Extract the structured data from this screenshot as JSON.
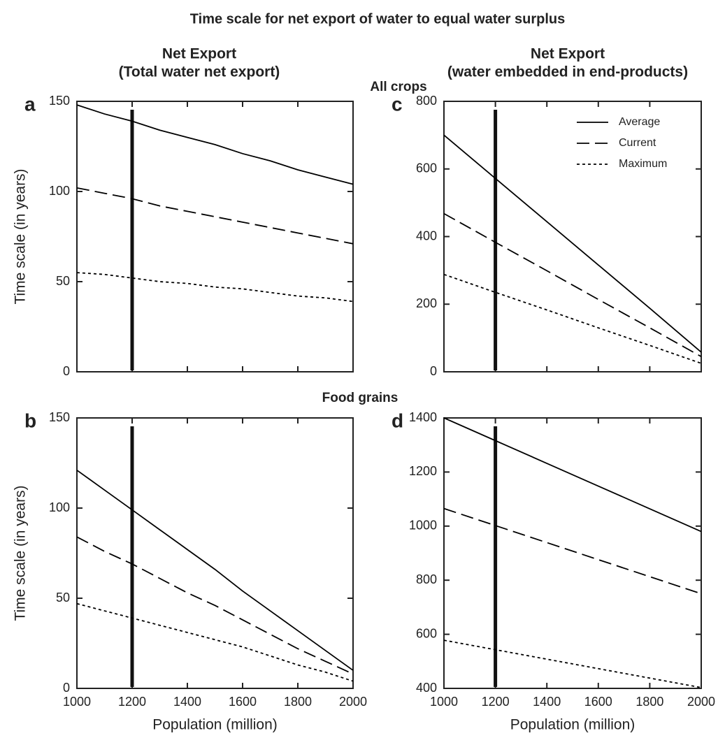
{
  "title": "Time scale for net export of water to equal water surplus",
  "column_titles": [
    [
      "Net Export",
      "(Total water net export)"
    ],
    [
      "Net Export",
      "(water embedded in end-products)"
    ]
  ],
  "row_titles": [
    "All crops",
    "Food grains"
  ],
  "chart_data": [
    {
      "type": "line",
      "label": "a",
      "ylabel": "Time scale (in years)",
      "show_xtick_labels": false,
      "xlim": [
        1000,
        2000
      ],
      "xticks": [
        1000,
        1200,
        1400,
        1600,
        1800,
        2000
      ],
      "ylim": [
        0,
        150
      ],
      "yticks": [
        0,
        50,
        100,
        150
      ],
      "vline": 1200,
      "x": [
        1000,
        1100,
        1200,
        1300,
        1400,
        1500,
        1600,
        1700,
        1800,
        1900,
        2000
      ],
      "series": [
        {
          "color": "#000000",
          "style": "solid",
          "values": [
            148,
            143,
            139,
            134,
            130,
            126,
            121,
            117,
            112,
            108,
            104
          ]
        },
        {
          "color": "#000000",
          "style": "dashed",
          "values": [
            102,
            99,
            96,
            92,
            89,
            86,
            83,
            80,
            77,
            74,
            71
          ]
        },
        {
          "color": "#000000",
          "style": "dotted",
          "values": [
            55,
            54,
            52,
            50,
            49,
            47,
            46,
            44,
            42,
            41,
            39
          ]
        }
      ]
    },
    {
      "type": "line",
      "label": "b",
      "ylabel": "Time scale (in years)",
      "xlabel": "Population (million)",
      "show_xtick_labels": true,
      "xlim": [
        1000,
        2000
      ],
      "xticks": [
        1000,
        1200,
        1400,
        1600,
        1800,
        2000
      ],
      "ylim": [
        0,
        150
      ],
      "yticks": [
        0,
        50,
        100,
        150
      ],
      "vline": 1200,
      "x": [
        1000,
        1100,
        1200,
        1300,
        1400,
        1500,
        1600,
        1700,
        1800,
        1900,
        2000
      ],
      "series": [
        {
          "color": "#000000",
          "style": "solid",
          "values": [
            121,
            110,
            99,
            88,
            77,
            66,
            54,
            43,
            32,
            21,
            10
          ]
        },
        {
          "color": "#000000",
          "style": "dashed",
          "values": [
            84,
            76,
            69,
            61,
            53,
            46,
            38,
            30,
            22,
            15,
            8
          ]
        },
        {
          "color": "#000000",
          "style": "dotted",
          "values": [
            47,
            43,
            39,
            35,
            31,
            27,
            23,
            18,
            13,
            9,
            4
          ]
        }
      ]
    },
    {
      "type": "line",
      "label": "c",
      "show_xtick_labels": false,
      "legend": "top-right",
      "xlim": [
        1000,
        2000
      ],
      "xticks": [
        1000,
        1200,
        1400,
        1600,
        1800,
        2000
      ],
      "ylim": [
        0,
        800
      ],
      "yticks": [
        0,
        200,
        400,
        600,
        800
      ],
      "vline": 1200,
      "x": [
        1000,
        1200,
        1400,
        1600,
        1800,
        2000
      ],
      "series": [
        {
          "name": "Average",
          "color": "#000000",
          "style": "solid",
          "values": [
            700,
            572,
            444,
            316,
            188,
            58
          ]
        },
        {
          "name": "Current",
          "color": "#000000",
          "style": "dashed",
          "values": [
            468,
            383,
            299,
            214,
            130,
            45
          ]
        },
        {
          "name": "Maximum",
          "color": "#000000",
          "style": "dotted",
          "values": [
            288,
            235,
            183,
            130,
            78,
            25
          ]
        }
      ]
    },
    {
      "type": "line",
      "label": "d",
      "xlabel": "Population (million)",
      "show_xtick_labels": true,
      "xlim": [
        1000,
        2000
      ],
      "xticks": [
        1000,
        1200,
        1400,
        1600,
        1800,
        2000
      ],
      "ylim": [
        400,
        1400
      ],
      "yticks": [
        400,
        600,
        800,
        1000,
        1200,
        1400
      ],
      "vline": 1200,
      "x": [
        1000,
        1200,
        1400,
        1600,
        1800,
        2000
      ],
      "series": [
        {
          "color": "#000000",
          "style": "solid",
          "values": [
            1400,
            1316,
            1232,
            1148,
            1064,
            980
          ]
        },
        {
          "color": "#000000",
          "style": "dashed",
          "values": [
            1065,
            1002,
            939,
            876,
            813,
            750
          ]
        },
        {
          "color": "#000000",
          "style": "dotted",
          "values": [
            578,
            543,
            508,
            473,
            438,
            403
          ]
        }
      ]
    }
  ]
}
